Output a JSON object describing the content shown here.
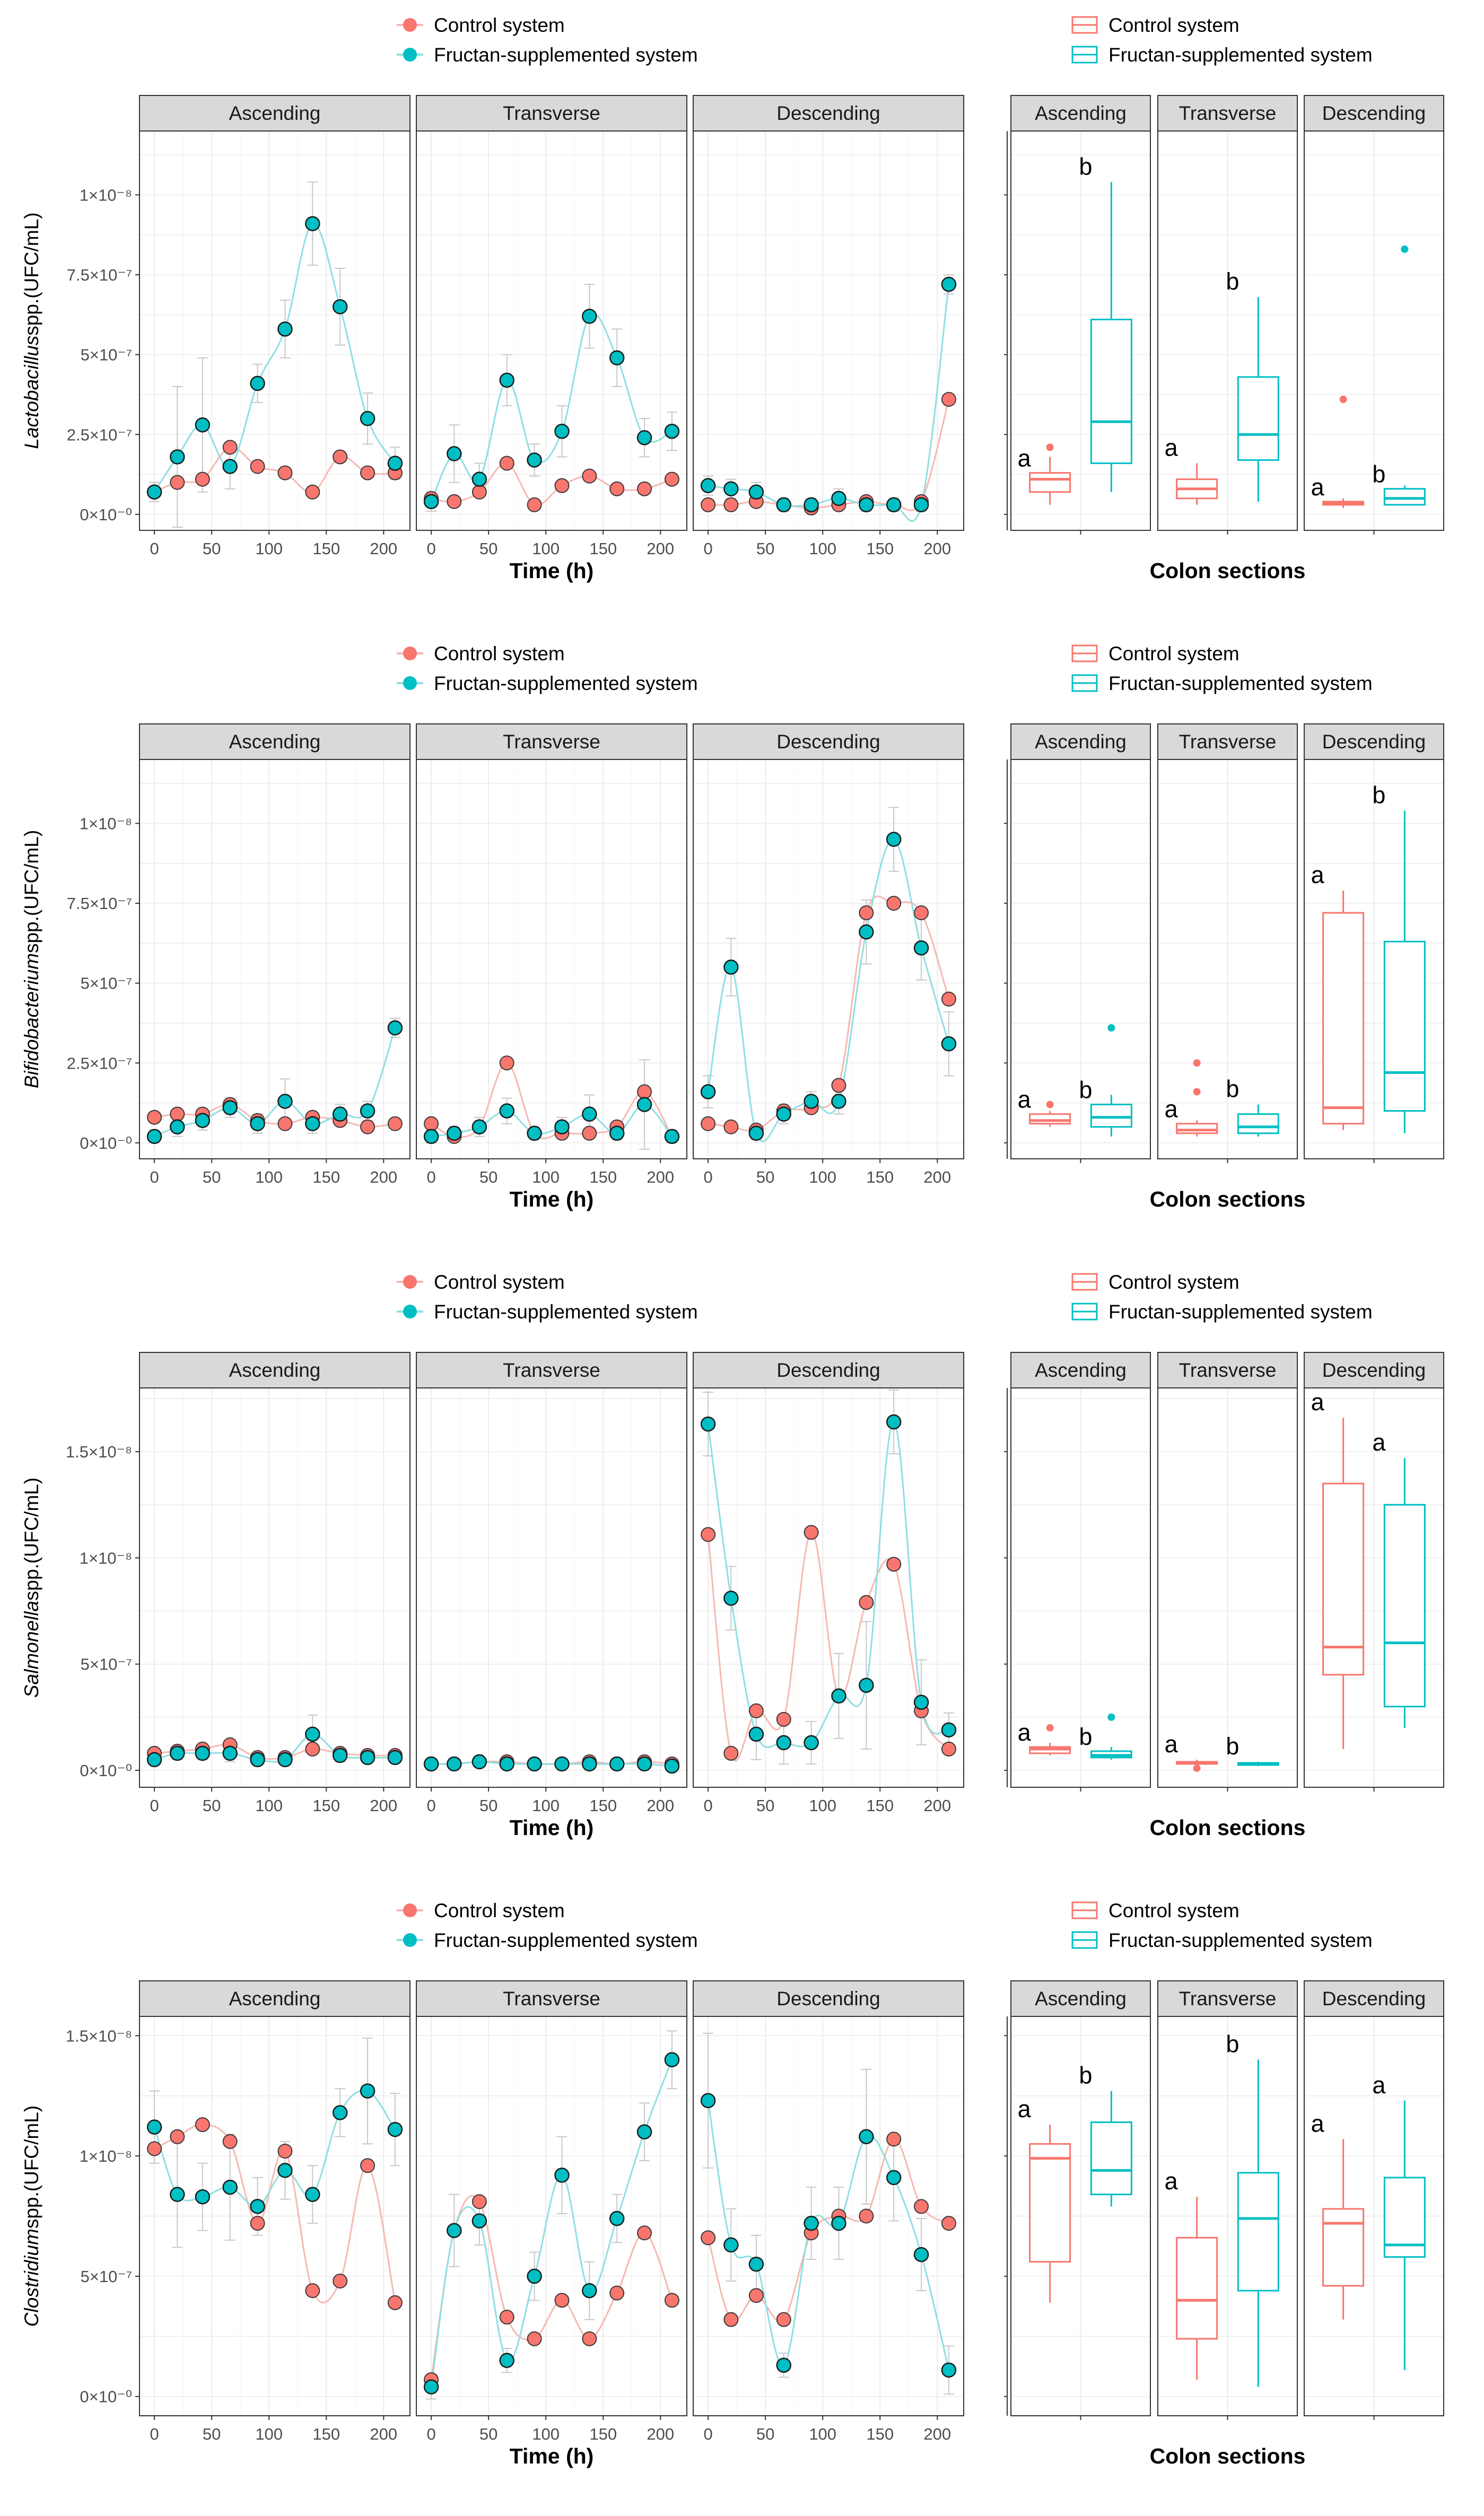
{
  "legend": {
    "control": "Control system",
    "fructan": "Fructan-supplemented system",
    "control_color": "#F8766D",
    "fructan_color": "#00BFC4"
  },
  "sections": [
    "Ascending",
    "Transverse",
    "Descending"
  ],
  "x_title": "Time (h)",
  "box_x_title": "Colon sections",
  "chart_data": [
    {
      "type": "line",
      "title": "Lactobacillus spp.",
      "ylabel_italic": "Lactobacillus",
      "ylabel_rest": "spp.(UFC/mL)",
      "x": [
        0,
        20,
        42,
        66,
        90,
        114,
        138,
        162,
        186,
        210
      ],
      "ylim": [
        -0.05,
        1.2
      ],
      "yticks": [
        0,
        0.25,
        0.5,
        0.75,
        1.0
      ],
      "ytick_labels": [
        "0×10⁻⁰",
        "2.5×10⁻⁷",
        "5×10⁻⁷",
        "7.5×10⁻⁷",
        "1×10⁻⁸"
      ],
      "xticks": [
        "0",
        "50",
        "100",
        "150",
        "200"
      ],
      "facets": [
        {
          "name": "Ascending",
          "control": [
            0.07,
            0.1,
            0.11,
            0.21,
            0.15,
            0.13,
            0.07,
            0.18,
            0.13,
            0.13
          ],
          "fructan": [
            0.07,
            0.18,
            0.28,
            0.15,
            0.41,
            0.58,
            0.91,
            0.65,
            0.3,
            0.16
          ],
          "fructan_err": [
            0.03,
            0.22,
            0.21,
            0.07,
            0.06,
            0.09,
            0.13,
            0.12,
            0.08,
            0.05
          ]
        },
        {
          "name": "Transverse",
          "control": [
            0.05,
            0.04,
            0.07,
            0.16,
            0.03,
            0.09,
            0.12,
            0.08,
            0.08,
            0.11
          ],
          "fructan": [
            0.04,
            0.19,
            0.11,
            0.42,
            0.17,
            0.26,
            0.62,
            0.49,
            0.24,
            0.26
          ],
          "fructan_err": [
            0.03,
            0.09,
            0.05,
            0.08,
            0.05,
            0.08,
            0.1,
            0.09,
            0.06,
            0.06
          ]
        },
        {
          "name": "Descending",
          "control": [
            0.03,
            0.03,
            0.04,
            0.03,
            0.02,
            0.03,
            0.04,
            0.03,
            0.04,
            0.36
          ],
          "fructan": [
            0.09,
            0.08,
            0.07,
            0.03,
            0.03,
            0.05,
            0.03,
            0.03,
            0.03,
            0.72
          ],
          "fructan_err": [
            0.03,
            0.03,
            0.03,
            0.02,
            0.02,
            0.03,
            0.02,
            0.02,
            0.02,
            0.03
          ]
        }
      ],
      "boxes": [
        {
          "section": "Ascending",
          "control": {
            "min": 0.03,
            "q1": 0.07,
            "med": 0.11,
            "q3": 0.13,
            "max": 0.18,
            "outliers": [
              0.21
            ],
            "sig": "a"
          },
          "fructan": {
            "min": 0.07,
            "q1": 0.16,
            "med": 0.29,
            "q3": 0.61,
            "max": 1.04,
            "outliers": [],
            "sig": "b"
          }
        },
        {
          "section": "Transverse",
          "control": {
            "min": 0.03,
            "q1": 0.05,
            "med": 0.08,
            "q3": 0.11,
            "max": 0.16,
            "outliers": [],
            "sig": "a"
          },
          "fructan": {
            "min": 0.04,
            "q1": 0.17,
            "med": 0.25,
            "q3": 0.43,
            "max": 0.68,
            "outliers": [],
            "sig": "b"
          }
        },
        {
          "section": "Descending",
          "control": {
            "min": 0.02,
            "q1": 0.03,
            "med": 0.035,
            "q3": 0.04,
            "max": 0.05,
            "outliers": [
              0.36
            ],
            "sig": "a"
          },
          "fructan": {
            "min": 0.03,
            "q1": 0.03,
            "med": 0.05,
            "q3": 0.08,
            "max": 0.09,
            "outliers": [
              0.83
            ],
            "sig": "b"
          }
        }
      ],
      "box_ylim": [
        -0.05,
        1.2
      ]
    },
    {
      "type": "line",
      "title": "Bifidobacterium spp.",
      "ylabel_italic": "Bifidobacterium",
      "ylabel_rest": "spp.(UFC/mL)",
      "x": [
        0,
        20,
        42,
        66,
        90,
        114,
        138,
        162,
        186,
        210
      ],
      "ylim": [
        -0.05,
        1.2
      ],
      "yticks": [
        0,
        0.25,
        0.5,
        0.75,
        1.0
      ],
      "ytick_labels": [
        "0×10⁻⁰",
        "2.5×10⁻⁷",
        "5×10⁻⁷",
        "7.5×10⁻⁷",
        "1×10⁻⁸"
      ],
      "xticks": [
        "0",
        "50",
        "100",
        "150",
        "200"
      ],
      "facets": [
        {
          "name": "Ascending",
          "control": [
            0.08,
            0.09,
            0.09,
            0.12,
            0.07,
            0.06,
            0.08,
            0.07,
            0.05,
            0.06
          ],
          "fructan": [
            0.02,
            0.05,
            0.07,
            0.11,
            0.06,
            0.13,
            0.06,
            0.09,
            0.1,
            0.36
          ],
          "fructan_err": [
            0.02,
            0.03,
            0.03,
            0.03,
            0.03,
            0.07,
            0.03,
            0.03,
            0.03,
            0.03
          ]
        },
        {
          "name": "Transverse",
          "control": [
            0.06,
            0.02,
            0.05,
            0.25,
            0.03,
            0.03,
            0.03,
            0.05,
            0.16,
            0.02
          ],
          "fructan": [
            0.02,
            0.03,
            0.05,
            0.1,
            0.03,
            0.05,
            0.09,
            0.03,
            0.12,
            0.02
          ],
          "fructan_err": [
            0.02,
            0.02,
            0.03,
            0.04,
            0.02,
            0.03,
            0.06,
            0.02,
            0.14,
            0.02
          ]
        },
        {
          "name": "Descending",
          "control": [
            0.06,
            0.05,
            0.04,
            0.1,
            0.11,
            0.18,
            0.72,
            0.75,
            0.72,
            0.45
          ],
          "fructan": [
            0.16,
            0.55,
            0.03,
            0.09,
            0.13,
            0.13,
            0.66,
            0.95,
            0.61,
            0.31
          ],
          "fructan_err": [
            0.05,
            0.09,
            0.02,
            0.03,
            0.03,
            0.04,
            0.1,
            0.1,
            0.1,
            0.1
          ]
        }
      ],
      "boxes": [
        {
          "section": "Ascending",
          "control": {
            "min": 0.05,
            "q1": 0.06,
            "med": 0.07,
            "q3": 0.09,
            "max": 0.1,
            "outliers": [
              0.12
            ],
            "sig": "a"
          },
          "fructan": {
            "min": 0.02,
            "q1": 0.05,
            "med": 0.08,
            "q3": 0.12,
            "max": 0.15,
            "outliers": [
              0.36
            ],
            "sig": "b"
          }
        },
        {
          "section": "Transverse",
          "control": {
            "min": 0.02,
            "q1": 0.03,
            "med": 0.04,
            "q3": 0.06,
            "max": 0.07,
            "outliers": [
              0.16,
              0.25
            ],
            "sig": "a"
          },
          "fructan": {
            "min": 0.02,
            "q1": 0.03,
            "med": 0.05,
            "q3": 0.09,
            "max": 0.12,
            "outliers": [],
            "sig": "b"
          }
        },
        {
          "section": "Descending",
          "control": {
            "min": 0.04,
            "q1": 0.06,
            "med": 0.11,
            "q3": 0.72,
            "max": 0.79,
            "outliers": [],
            "sig": "a"
          },
          "fructan": {
            "min": 0.03,
            "q1": 0.1,
            "med": 0.22,
            "q3": 0.63,
            "max": 1.04,
            "outliers": [],
            "sig": "b"
          }
        }
      ],
      "box_ylim": [
        -0.05,
        1.2
      ]
    },
    {
      "type": "line",
      "title": "Salmonella spp.",
      "ylabel_italic": "Salmonella",
      "ylabel_rest": "spp.(UFC/mL)",
      "x": [
        0,
        20,
        42,
        66,
        90,
        114,
        138,
        162,
        186,
        210
      ],
      "ylim": [
        -0.08,
        1.8
      ],
      "yticks": [
        0,
        0.5,
        1.0,
        1.5
      ],
      "ytick_labels": [
        "0×10⁻⁰",
        "5×10⁻⁷",
        "1×10⁻⁸",
        "1.5×10⁻⁸"
      ],
      "xticks": [
        "0",
        "50",
        "100",
        "150",
        "200"
      ],
      "facets": [
        {
          "name": "Ascending",
          "control": [
            0.08,
            0.09,
            0.1,
            0.12,
            0.06,
            0.06,
            0.1,
            0.08,
            0.07,
            0.07
          ],
          "fructan": [
            0.05,
            0.08,
            0.08,
            0.08,
            0.05,
            0.05,
            0.17,
            0.07,
            0.06,
            0.06
          ],
          "fructan_err": [
            0.02,
            0.03,
            0.03,
            0.04,
            0.02,
            0.02,
            0.09,
            0.03,
            0.02,
            0.02
          ]
        },
        {
          "name": "Transverse",
          "control": [
            0.03,
            0.03,
            0.04,
            0.04,
            0.03,
            0.03,
            0.04,
            0.03,
            0.04,
            0.03
          ],
          "fructan": [
            0.03,
            0.03,
            0.04,
            0.03,
            0.03,
            0.03,
            0.03,
            0.03,
            0.03,
            0.02
          ],
          "fructan_err": [
            0.01,
            0.01,
            0.01,
            0.01,
            0.01,
            0.01,
            0.01,
            0.01,
            0.01,
            0.01
          ]
        },
        {
          "name": "Descending",
          "control": [
            1.11,
            0.08,
            0.28,
            0.24,
            1.12,
            0.35,
            0.79,
            0.97,
            0.28,
            0.1
          ],
          "fructan": [
            1.63,
            0.81,
            0.17,
            0.13,
            0.13,
            0.35,
            0.4,
            1.64,
            0.32,
            0.19
          ],
          "fructan_err": [
            0.15,
            0.15,
            0.12,
            0.1,
            0.1,
            0.2,
            0.3,
            0.15,
            0.2,
            0.08
          ]
        }
      ],
      "boxes": [
        {
          "section": "Ascending",
          "control": {
            "min": 0.07,
            "q1": 0.08,
            "med": 0.1,
            "q3": 0.11,
            "max": 0.13,
            "outliers": [
              0.2
            ],
            "sig": "a"
          },
          "fructan": {
            "min": 0.05,
            "q1": 0.06,
            "med": 0.07,
            "q3": 0.09,
            "max": 0.11,
            "outliers": [
              0.25
            ],
            "sig": "b"
          }
        },
        {
          "section": "Transverse",
          "control": {
            "min": 0.02,
            "q1": 0.03,
            "med": 0.035,
            "q3": 0.04,
            "max": 0.05,
            "outliers": [
              0.01
            ],
            "sig": "a"
          },
          "fructan": {
            "min": 0.02,
            "q1": 0.025,
            "med": 0.03,
            "q3": 0.035,
            "max": 0.04,
            "outliers": [],
            "sig": "b"
          }
        },
        {
          "section": "Descending",
          "control": {
            "min": 0.1,
            "q1": 0.45,
            "med": 0.58,
            "q3": 1.35,
            "max": 1.66,
            "outliers": [],
            "sig": "a"
          },
          "fructan": {
            "min": 0.2,
            "q1": 0.3,
            "med": 0.6,
            "q3": 1.25,
            "max": 1.47,
            "outliers": [],
            "sig": "a"
          }
        }
      ],
      "box_ylim": [
        -0.08,
        1.8
      ]
    },
    {
      "type": "line",
      "title": "Clostridium spp.",
      "ylabel_italic": "Clostridium",
      "ylabel_rest": "spp.(UFC/mL)",
      "x": [
        0,
        20,
        42,
        66,
        90,
        114,
        138,
        162,
        186,
        210
      ],
      "ylim": [
        -0.08,
        1.58
      ],
      "yticks": [
        0,
        0.5,
        1.0,
        1.5
      ],
      "ytick_labels": [
        "0×10⁻⁰",
        "5×10⁻⁷",
        "1×10⁻⁸",
        "1.5×10⁻⁸"
      ],
      "xticks": [
        "0",
        "50",
        "100",
        "150",
        "200"
      ],
      "facets": [
        {
          "name": "Ascending",
          "control": [
            1.03,
            1.08,
            1.13,
            1.06,
            0.72,
            1.02,
            0.44,
            0.48,
            0.96,
            0.39
          ],
          "fructan": [
            1.12,
            0.84,
            0.83,
            0.87,
            0.79,
            0.94,
            0.84,
            1.18,
            1.27,
            1.11
          ],
          "fructan_err": [
            0.15,
            0.22,
            0.14,
            0.22,
            0.12,
            0.12,
            0.12,
            0.1,
            0.22,
            0.15
          ]
        },
        {
          "name": "Transverse",
          "control": [
            0.07,
            0.69,
            0.81,
            0.33,
            0.24,
            0.4,
            0.24,
            0.43,
            0.68,
            0.4
          ],
          "fructan": [
            0.04,
            0.69,
            0.73,
            0.15,
            0.5,
            0.92,
            0.44,
            0.74,
            1.1,
            1.4
          ],
          "fructan_err": [
            0.05,
            0.15,
            0.1,
            0.05,
            0.1,
            0.16,
            0.12,
            0.1,
            0.12,
            0.12
          ]
        },
        {
          "name": "Descending",
          "control": [
            0.66,
            0.32,
            0.42,
            0.32,
            0.68,
            0.75,
            0.75,
            1.07,
            0.79,
            0.72
          ],
          "fructan": [
            1.23,
            0.63,
            0.55,
            0.13,
            0.72,
            0.72,
            1.08,
            0.91,
            0.59,
            0.11
          ],
          "fructan_err": [
            0.28,
            0.15,
            0.12,
            0.05,
            0.15,
            0.15,
            0.28,
            0.18,
            0.15,
            0.1
          ]
        }
      ],
      "boxes": [
        {
          "section": "Ascending",
          "control": {
            "min": 0.39,
            "q1": 0.56,
            "med": 0.99,
            "q3": 1.05,
            "max": 1.13,
            "outliers": [],
            "sig": "a"
          },
          "fructan": {
            "min": 0.79,
            "q1": 0.84,
            "med": 0.94,
            "q3": 1.14,
            "max": 1.27,
            "outliers": [],
            "sig": "b"
          }
        },
        {
          "section": "Transverse",
          "control": {
            "min": 0.07,
            "q1": 0.24,
            "med": 0.4,
            "q3": 0.66,
            "max": 0.83,
            "outliers": [],
            "sig": "a"
          },
          "fructan": {
            "min": 0.04,
            "q1": 0.44,
            "med": 0.74,
            "q3": 0.93,
            "max": 1.4,
            "outliers": [],
            "sig": "b"
          }
        },
        {
          "section": "Descending",
          "control": {
            "min": 0.32,
            "q1": 0.46,
            "med": 0.72,
            "q3": 0.78,
            "max": 1.07,
            "outliers": [],
            "sig": "a"
          },
          "fructan": {
            "min": 0.11,
            "q1": 0.58,
            "med": 0.63,
            "q3": 0.91,
            "max": 1.23,
            "outliers": [],
            "sig": "a"
          }
        }
      ],
      "box_ylim": [
        -0.08,
        1.58
      ]
    }
  ]
}
